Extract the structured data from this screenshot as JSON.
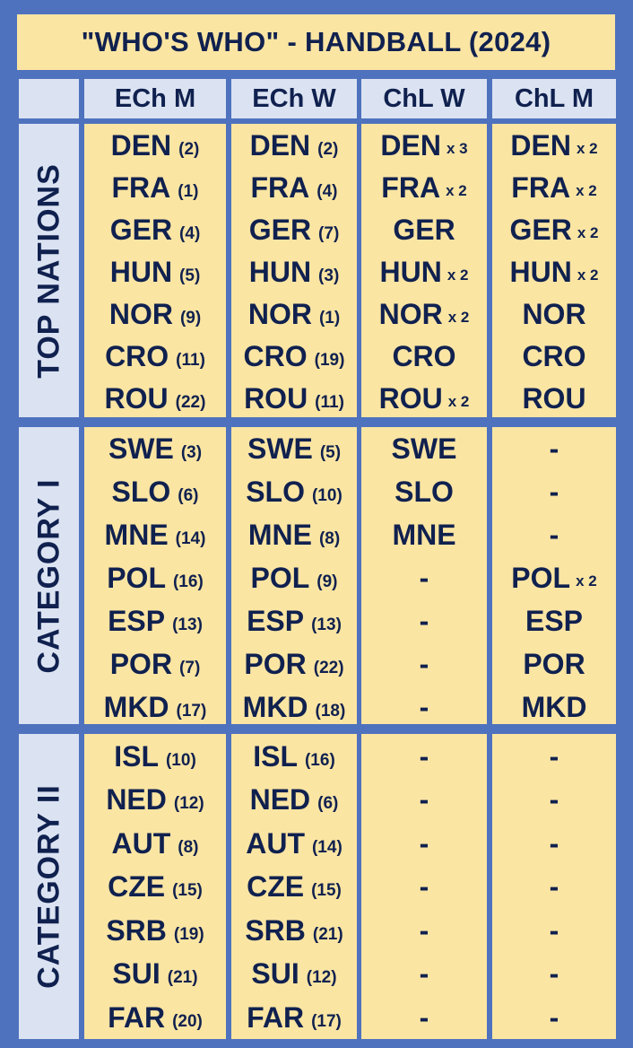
{
  "title": "\"WHO'S WHO\" - HANDBALL (2024)",
  "columns": [
    "ECh M",
    "ECh W",
    "ChL W",
    "ChL M"
  ],
  "groups": [
    {
      "label": "TOP NATIONS",
      "rows": [
        [
          {
            "code": "DEN",
            "note": "(2)"
          },
          {
            "code": "DEN",
            "note": "(2)"
          },
          {
            "code": "DEN",
            "note": "x 3"
          },
          {
            "code": "DEN",
            "note": "x 2"
          }
        ],
        [
          {
            "code": "FRA",
            "note": "(1)"
          },
          {
            "code": "FRA",
            "note": "(4)"
          },
          {
            "code": "FRA",
            "note": "x 2"
          },
          {
            "code": "FRA",
            "note": "x 2"
          }
        ],
        [
          {
            "code": "GER",
            "note": "(4)"
          },
          {
            "code": "GER",
            "note": "(7)"
          },
          {
            "code": "GER",
            "note": ""
          },
          {
            "code": "GER",
            "note": "x 2"
          }
        ],
        [
          {
            "code": "HUN",
            "note": "(5)"
          },
          {
            "code": "HUN",
            "note": "(3)"
          },
          {
            "code": "HUN",
            "note": "x 2"
          },
          {
            "code": "HUN",
            "note": "x 2"
          }
        ],
        [
          {
            "code": "NOR",
            "note": "(9)"
          },
          {
            "code": "NOR",
            "note": "(1)"
          },
          {
            "code": "NOR",
            "note": "x 2"
          },
          {
            "code": "NOR",
            "note": ""
          }
        ],
        [
          {
            "code": "CRO",
            "note": "(11)"
          },
          {
            "code": "CRO",
            "note": "(19)"
          },
          {
            "code": "CRO",
            "note": ""
          },
          {
            "code": "CRO",
            "note": ""
          }
        ],
        [
          {
            "code": "ROU",
            "note": "(22)"
          },
          {
            "code": "ROU",
            "note": "(11)"
          },
          {
            "code": "ROU",
            "note": "x 2"
          },
          {
            "code": "ROU",
            "note": ""
          }
        ]
      ]
    },
    {
      "label": "CATEGORY I",
      "rows": [
        [
          {
            "code": "SWE",
            "note": "(3)"
          },
          {
            "code": "SWE",
            "note": "(5)"
          },
          {
            "code": "SWE",
            "note": ""
          },
          {
            "code": "-",
            "note": ""
          }
        ],
        [
          {
            "code": "SLO",
            "note": "(6)"
          },
          {
            "code": "SLO",
            "note": "(10)"
          },
          {
            "code": "SLO",
            "note": ""
          },
          {
            "code": "-",
            "note": ""
          }
        ],
        [
          {
            "code": "MNE",
            "note": "(14)"
          },
          {
            "code": "MNE",
            "note": "(8)"
          },
          {
            "code": "MNE",
            "note": ""
          },
          {
            "code": "-",
            "note": ""
          }
        ],
        [
          {
            "code": "POL",
            "note": "(16)"
          },
          {
            "code": "POL",
            "note": "(9)"
          },
          {
            "code": "-",
            "note": ""
          },
          {
            "code": "POL",
            "note": "x 2"
          }
        ],
        [
          {
            "code": "ESP",
            "note": "(13)"
          },
          {
            "code": "ESP",
            "note": "(13)"
          },
          {
            "code": "-",
            "note": ""
          },
          {
            "code": "ESP",
            "note": ""
          }
        ],
        [
          {
            "code": "POR",
            "note": "(7)"
          },
          {
            "code": "POR",
            "note": "(22)"
          },
          {
            "code": "-",
            "note": ""
          },
          {
            "code": "POR",
            "note": ""
          }
        ],
        [
          {
            "code": "MKD",
            "note": "(17)"
          },
          {
            "code": "MKD",
            "note": "(18)"
          },
          {
            "code": "-",
            "note": ""
          },
          {
            "code": "MKD",
            "note": ""
          }
        ]
      ]
    },
    {
      "label": "CATEGORY II",
      "rows": [
        [
          {
            "code": "ISL",
            "note": "(10)"
          },
          {
            "code": "ISL",
            "note": "(16)"
          },
          {
            "code": "-",
            "note": ""
          },
          {
            "code": "-",
            "note": ""
          }
        ],
        [
          {
            "code": "NED",
            "note": "(12)"
          },
          {
            "code": "NED",
            "note": "(6)"
          },
          {
            "code": "-",
            "note": ""
          },
          {
            "code": "-",
            "note": ""
          }
        ],
        [
          {
            "code": "AUT",
            "note": "(8)"
          },
          {
            "code": "AUT",
            "note": "(14)"
          },
          {
            "code": "-",
            "note": ""
          },
          {
            "code": "-",
            "note": ""
          }
        ],
        [
          {
            "code": "CZE",
            "note": "(15)"
          },
          {
            "code": "CZE",
            "note": "(15)"
          },
          {
            "code": "-",
            "note": ""
          },
          {
            "code": "-",
            "note": ""
          }
        ],
        [
          {
            "code": "SRB",
            "note": "(19)"
          },
          {
            "code": "SRB",
            "note": "(21)"
          },
          {
            "code": "-",
            "note": ""
          },
          {
            "code": "-",
            "note": ""
          }
        ],
        [
          {
            "code": "SUI",
            "note": "(21)"
          },
          {
            "code": "SUI",
            "note": "(12)"
          },
          {
            "code": "-",
            "note": ""
          },
          {
            "code": "-",
            "note": ""
          }
        ],
        [
          {
            "code": "FAR",
            "note": "(20)"
          },
          {
            "code": "FAR",
            "note": "(17)"
          },
          {
            "code": "-",
            "note": ""
          },
          {
            "code": "-",
            "note": ""
          }
        ]
      ]
    }
  ],
  "colors": {
    "background": "#4f72be",
    "cell": "#fbe5a3",
    "header": "#dbe3f2",
    "text": "#10214f"
  }
}
